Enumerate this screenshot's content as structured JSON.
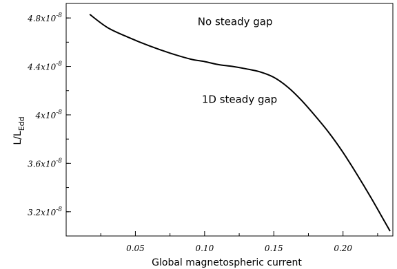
{
  "chart_data": {
    "type": "line",
    "title": "",
    "xlabel": "Global magnetospheric current",
    "ylabel_main": "L/L",
    "ylabel_sub": "Edd",
    "xlim": [
      0.0,
      0.236
    ],
    "ylim": [
      3e-08,
      4.92e-08
    ],
    "grid": false,
    "x_ticks": [
      {
        "value": 0.05,
        "label": "0.05"
      },
      {
        "value": 0.1,
        "label": "0.10"
      },
      {
        "value": 0.15,
        "label": "0.15"
      },
      {
        "value": 0.2,
        "label": "0.20"
      }
    ],
    "y_ticks": [
      {
        "value": 3.2e-08,
        "label": "3.2x10",
        "exp": "-8"
      },
      {
        "value": 3.6e-08,
        "label": "3.6x10",
        "exp": "-8"
      },
      {
        "value": 4e-08,
        "label": "4x10",
        "exp": "-8"
      },
      {
        "value": 4.4e-08,
        "label": "4.4x10",
        "exp": "-8"
      },
      {
        "value": 4.8e-08,
        "label": "4.8x10",
        "exp": "-8"
      }
    ],
    "annotations": [
      {
        "text": "No steady gap",
        "x": 0.095,
        "y": 4.74e-08
      },
      {
        "text": "1D steady gap",
        "x": 0.098,
        "y": 4.1e-08
      }
    ],
    "series": [
      {
        "x": [
          0.017,
          0.03,
          0.045,
          0.06,
          0.075,
          0.09,
          0.1,
          0.11,
          0.12,
          0.13,
          0.14,
          0.15,
          0.16,
          0.17,
          0.18,
          0.19,
          0.2,
          0.21,
          0.22,
          0.23,
          0.234
        ],
        "y": [
          4.83e-08,
          4.72e-08,
          4.64e-08,
          4.57e-08,
          4.51e-08,
          4.46e-08,
          4.44e-08,
          4.415e-08,
          4.4e-08,
          4.38e-08,
          4.355e-08,
          4.31e-08,
          4.23e-08,
          4.12e-08,
          3.99e-08,
          3.85e-08,
          3.69e-08,
          3.51e-08,
          3.32e-08,
          3.12e-08,
          3.04e-08
        ]
      }
    ]
  }
}
